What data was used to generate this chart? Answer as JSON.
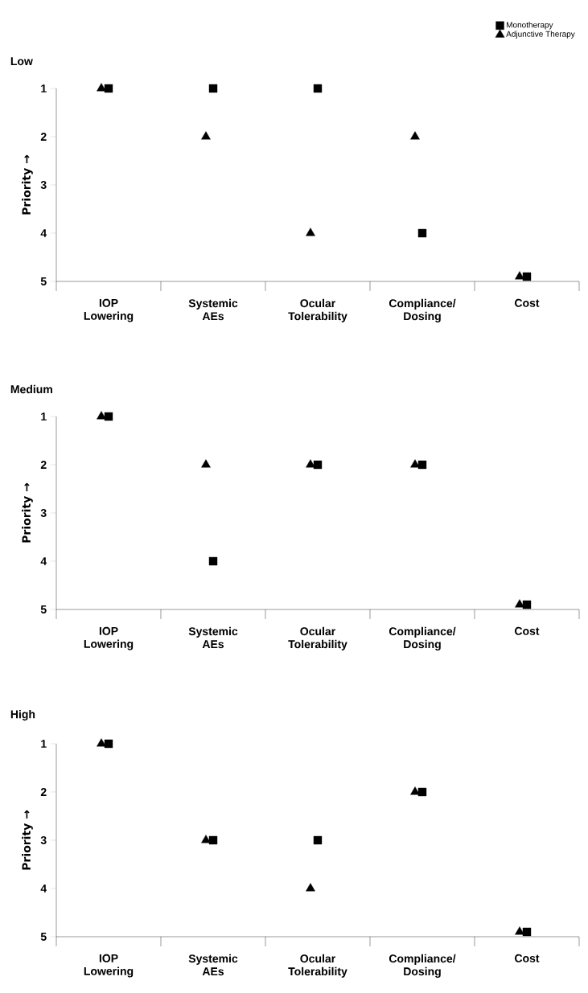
{
  "chart_data": [
    {
      "type": "scatter",
      "title": "Low",
      "ylabel": "Priority →",
      "categories": [
        "IOP Lowering",
        "Systemic AEs",
        "Ocular Tolerability",
        "Compliance/ Dosing",
        "Cost"
      ],
      "ylim": [
        5,
        1
      ],
      "yticks": [
        1,
        2,
        3,
        4,
        5
      ],
      "legend": "top right",
      "series": [
        {
          "name": "Monotherapy",
          "color": "#000000",
          "marker": "square",
          "values": [
            1,
            1,
            1,
            4,
            4.9
          ]
        },
        {
          "name": "Adjunctive Therapy",
          "color": "#000000",
          "marker": "triangle",
          "values": [
            1,
            2,
            4,
            2,
            4.9
          ]
        }
      ]
    },
    {
      "type": "scatter",
      "title": "Medium",
      "ylabel": "Priority →",
      "categories": [
        "IOP Lowering",
        "Systemic AEs",
        "Ocular Tolerability",
        "Compliance/ Dosing",
        "Cost"
      ],
      "ylim": [
        5,
        1
      ],
      "yticks": [
        1,
        2,
        3,
        4,
        5
      ],
      "series": [
        {
          "color": "#000000",
          "marker": "square",
          "values": [
            1,
            4,
            2,
            2,
            4.9
          ]
        },
        {
          "color": "#000000",
          "marker": "triangle",
          "values": [
            1,
            2,
            2,
            2,
            4.9
          ]
        }
      ]
    },
    {
      "type": "scatter",
      "title": "High",
      "ylabel": "Priority →",
      "categories": [
        "IOP Lowering",
        "Systemic AEs",
        "Ocular Tolerability",
        "Compliance/ Dosing",
        "Cost"
      ],
      "ylim": [
        5,
        1
      ],
      "yticks": [
        1,
        2,
        3,
        4,
        5
      ],
      "series": [
        {
          "color": "#000000",
          "marker": "square",
          "values": [
            1,
            3,
            3,
            2,
            4.9
          ]
        },
        {
          "color": "#000000",
          "marker": "triangle",
          "values": [
            1,
            3,
            4,
            2,
            4.9
          ]
        }
      ]
    }
  ]
}
